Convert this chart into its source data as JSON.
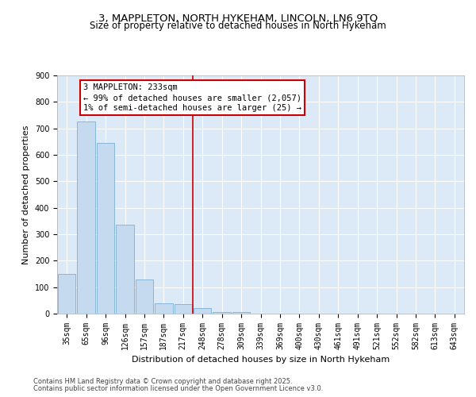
{
  "title1": "3, MAPPLETON, NORTH HYKEHAM, LINCOLN, LN6 9TQ",
  "title2": "Size of property relative to detached houses in North Hykeham",
  "xlabel": "Distribution of detached houses by size in North Hykeham",
  "ylabel": "Number of detached properties",
  "categories": [
    "35sqm",
    "65sqm",
    "96sqm",
    "126sqm",
    "157sqm",
    "187sqm",
    "217sqm",
    "248sqm",
    "278sqm",
    "309sqm",
    "339sqm",
    "369sqm",
    "400sqm",
    "430sqm",
    "461sqm",
    "491sqm",
    "521sqm",
    "552sqm",
    "582sqm",
    "613sqm",
    "643sqm"
  ],
  "values": [
    150,
    725,
    645,
    335,
    130,
    40,
    35,
    20,
    5,
    5,
    0,
    0,
    0,
    0,
    0,
    0,
    0,
    0,
    0,
    0,
    0
  ],
  "bar_color": "#c5d9ef",
  "bar_edge_color": "#7aafd4",
  "vline_x": 6.5,
  "vline_color": "#cc0000",
  "annotation_text": "3 MAPPLETON: 233sqm\n← 99% of detached houses are smaller (2,057)\n1% of semi-detached houses are larger (25) →",
  "annotation_box_color": "#cc0000",
  "ylim": [
    0,
    900
  ],
  "yticks": [
    0,
    100,
    200,
    300,
    400,
    500,
    600,
    700,
    800,
    900
  ],
  "plot_bg_color": "#dce9f7",
  "footer1": "Contains HM Land Registry data © Crown copyright and database right 2025.",
  "footer2": "Contains public sector information licensed under the Open Government Licence v3.0.",
  "title_fontsize": 9.5,
  "subtitle_fontsize": 8.5,
  "tick_fontsize": 7,
  "ylabel_fontsize": 8,
  "xlabel_fontsize": 8,
  "annotation_fontsize": 7.5,
  "footer_fontsize": 6
}
